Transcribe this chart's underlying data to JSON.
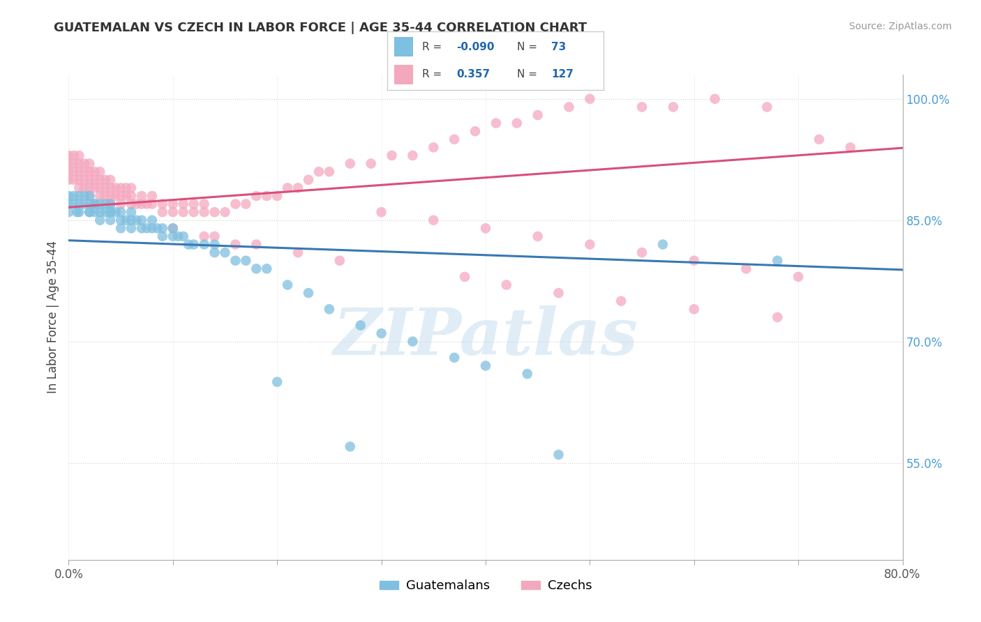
{
  "title": "GUATEMALAN VS CZECH IN LABOR FORCE | AGE 35-44 CORRELATION CHART",
  "source": "Source: ZipAtlas.com",
  "ylabel": "In Labor Force | Age 35-44",
  "xlim": [
    0.0,
    0.8
  ],
  "ylim": [
    0.43,
    1.03
  ],
  "right_yticks": [
    1.0,
    0.85,
    0.7,
    0.55
  ],
  "right_yticklabels": [
    "100.0%",
    "85.0%",
    "70.0%",
    "55.0%"
  ],
  "blue_R": -0.09,
  "blue_N": 73,
  "pink_R": 0.357,
  "pink_N": 127,
  "blue_color": "#7fbfdf",
  "pink_color": "#f4a8be",
  "blue_line_color": "#3878b4",
  "pink_line_color": "#d94f7a",
  "watermark": "ZIPatlas",
  "blue_scatter_x": [
    0.0,
    0.0,
    0.0,
    0.005,
    0.005,
    0.008,
    0.01,
    0.01,
    0.01,
    0.015,
    0.015,
    0.02,
    0.02,
    0.02,
    0.02,
    0.025,
    0.025,
    0.025,
    0.03,
    0.03,
    0.03,
    0.035,
    0.035,
    0.04,
    0.04,
    0.04,
    0.04,
    0.045,
    0.05,
    0.05,
    0.05,
    0.055,
    0.06,
    0.06,
    0.06,
    0.065,
    0.07,
    0.07,
    0.075,
    0.08,
    0.08,
    0.085,
    0.09,
    0.09,
    0.1,
    0.1,
    0.105,
    0.11,
    0.115,
    0.12,
    0.13,
    0.14,
    0.14,
    0.15,
    0.16,
    0.17,
    0.18,
    0.19,
    0.21,
    0.23,
    0.25,
    0.28,
    0.3,
    0.33,
    0.37,
    0.4,
    0.44,
    0.57,
    0.68,
    0.2,
    0.27,
    0.47
  ],
  "blue_scatter_y": [
    0.87,
    0.88,
    0.86,
    0.87,
    0.88,
    0.86,
    0.87,
    0.86,
    0.88,
    0.87,
    0.88,
    0.86,
    0.87,
    0.88,
    0.86,
    0.87,
    0.86,
    0.87,
    0.86,
    0.87,
    0.85,
    0.86,
    0.87,
    0.86,
    0.87,
    0.85,
    0.86,
    0.86,
    0.85,
    0.86,
    0.84,
    0.85,
    0.85,
    0.86,
    0.84,
    0.85,
    0.84,
    0.85,
    0.84,
    0.84,
    0.85,
    0.84,
    0.84,
    0.83,
    0.83,
    0.84,
    0.83,
    0.83,
    0.82,
    0.82,
    0.82,
    0.81,
    0.82,
    0.81,
    0.8,
    0.8,
    0.79,
    0.79,
    0.77,
    0.76,
    0.74,
    0.72,
    0.71,
    0.7,
    0.68,
    0.67,
    0.66,
    0.82,
    0.8,
    0.65,
    0.57,
    0.56
  ],
  "pink_scatter_x": [
    0.0,
    0.0,
    0.0,
    0.0,
    0.005,
    0.005,
    0.005,
    0.005,
    0.01,
    0.01,
    0.01,
    0.01,
    0.01,
    0.015,
    0.015,
    0.015,
    0.015,
    0.02,
    0.02,
    0.02,
    0.02,
    0.02,
    0.025,
    0.025,
    0.025,
    0.03,
    0.03,
    0.03,
    0.03,
    0.035,
    0.035,
    0.035,
    0.04,
    0.04,
    0.04,
    0.04,
    0.045,
    0.045,
    0.05,
    0.05,
    0.05,
    0.055,
    0.055,
    0.06,
    0.06,
    0.06,
    0.065,
    0.07,
    0.07,
    0.075,
    0.08,
    0.08,
    0.09,
    0.09,
    0.1,
    0.1,
    0.11,
    0.11,
    0.12,
    0.12,
    0.13,
    0.13,
    0.14,
    0.15,
    0.16,
    0.17,
    0.18,
    0.19,
    0.2,
    0.21,
    0.22,
    0.23,
    0.24,
    0.25,
    0.27,
    0.29,
    0.31,
    0.33,
    0.35,
    0.37,
    0.39,
    0.41,
    0.43,
    0.45,
    0.48,
    0.5,
    0.55,
    0.58,
    0.62,
    0.67,
    0.72,
    0.75,
    0.3,
    0.35,
    0.4,
    0.45,
    0.5,
    0.55,
    0.6,
    0.65,
    0.7,
    0.14,
    0.18,
    0.22,
    0.26,
    0.38,
    0.42,
    0.47,
    0.53,
    0.6,
    0.68,
    0.1,
    0.13,
    0.16
  ],
  "pink_scatter_y": [
    0.91,
    0.92,
    0.9,
    0.93,
    0.91,
    0.92,
    0.9,
    0.93,
    0.9,
    0.91,
    0.92,
    0.89,
    0.93,
    0.9,
    0.91,
    0.89,
    0.92,
    0.89,
    0.9,
    0.91,
    0.88,
    0.92,
    0.89,
    0.9,
    0.91,
    0.88,
    0.89,
    0.9,
    0.91,
    0.88,
    0.89,
    0.9,
    0.87,
    0.88,
    0.89,
    0.9,
    0.88,
    0.89,
    0.87,
    0.88,
    0.89,
    0.88,
    0.89,
    0.87,
    0.88,
    0.89,
    0.87,
    0.87,
    0.88,
    0.87,
    0.87,
    0.88,
    0.87,
    0.86,
    0.87,
    0.86,
    0.87,
    0.86,
    0.87,
    0.86,
    0.87,
    0.86,
    0.86,
    0.86,
    0.87,
    0.87,
    0.88,
    0.88,
    0.88,
    0.89,
    0.89,
    0.9,
    0.91,
    0.91,
    0.92,
    0.92,
    0.93,
    0.93,
    0.94,
    0.95,
    0.96,
    0.97,
    0.97,
    0.98,
    0.99,
    1.0,
    0.99,
    0.99,
    1.0,
    0.99,
    0.95,
    0.94,
    0.86,
    0.85,
    0.84,
    0.83,
    0.82,
    0.81,
    0.8,
    0.79,
    0.78,
    0.83,
    0.82,
    0.81,
    0.8,
    0.78,
    0.77,
    0.76,
    0.75,
    0.74,
    0.73,
    0.84,
    0.83,
    0.82
  ]
}
